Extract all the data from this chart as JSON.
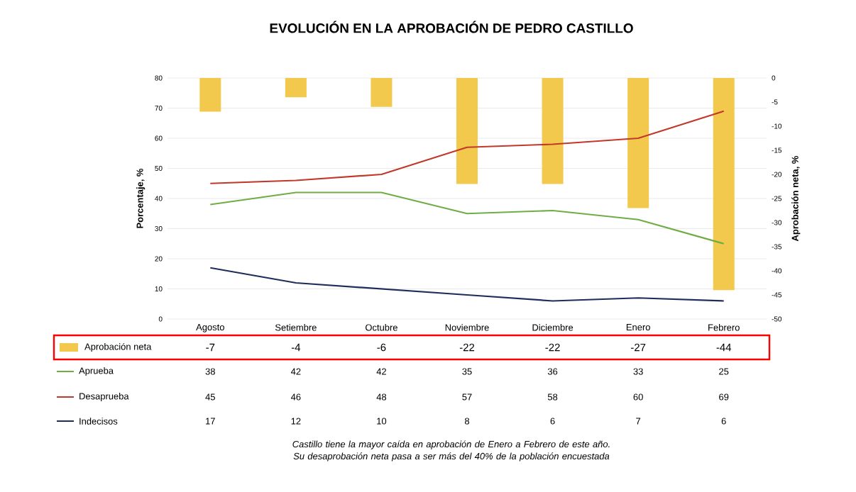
{
  "chart_data": {
    "type": "line",
    "title": "EVOLUCIÓN EN LA APROBACIÓN DE PEDRO CASTILLO",
    "ylabel": "Porcentaje, %",
    "y2label": "Aprobación neta, %",
    "categories": [
      "Agosto",
      "Setiembre",
      "Octubre",
      "Noviembre",
      "Diciembre",
      "Enero",
      "Febrero"
    ],
    "series": [
      {
        "name": "Aprobación neta",
        "type": "bar",
        "axis": "y2",
        "color": "#f2c94c",
        "values": [
          -7,
          -4,
          -6,
          -22,
          -22,
          -27,
          -44
        ]
      },
      {
        "name": "Aprueba",
        "color": "#70ad47",
        "values": [
          38,
          42,
          42,
          35,
          36,
          33,
          25
        ]
      },
      {
        "name": "Desaprueba",
        "color": "#c0392b",
        "values": [
          45,
          46,
          48,
          57,
          58,
          60,
          69
        ]
      },
      {
        "name": "Indecisos",
        "color": "#1f2d5a",
        "values": [
          17,
          12,
          10,
          8,
          6,
          7,
          6
        ]
      }
    ],
    "ylim": [
      0,
      80
    ],
    "yticks": [
      0,
      10,
      20,
      30,
      40,
      50,
      60,
      70,
      80
    ],
    "y2lim": [
      -50,
      0
    ],
    "y2ticks": [
      -50,
      -45,
      -40,
      -35,
      -30,
      -25,
      -20,
      -15,
      -10,
      -5,
      0
    ],
    "grid": "y",
    "legend": "bottom",
    "data_labels": true,
    "marker": "none",
    "line_style": "solid",
    "annotations": [
      "Castillo tiene la mayor caída en aprobación de Enero a Febrero de este año. Su desaprobación neta pasa a ser más del 40% de la población encuestada"
    ]
  }
}
